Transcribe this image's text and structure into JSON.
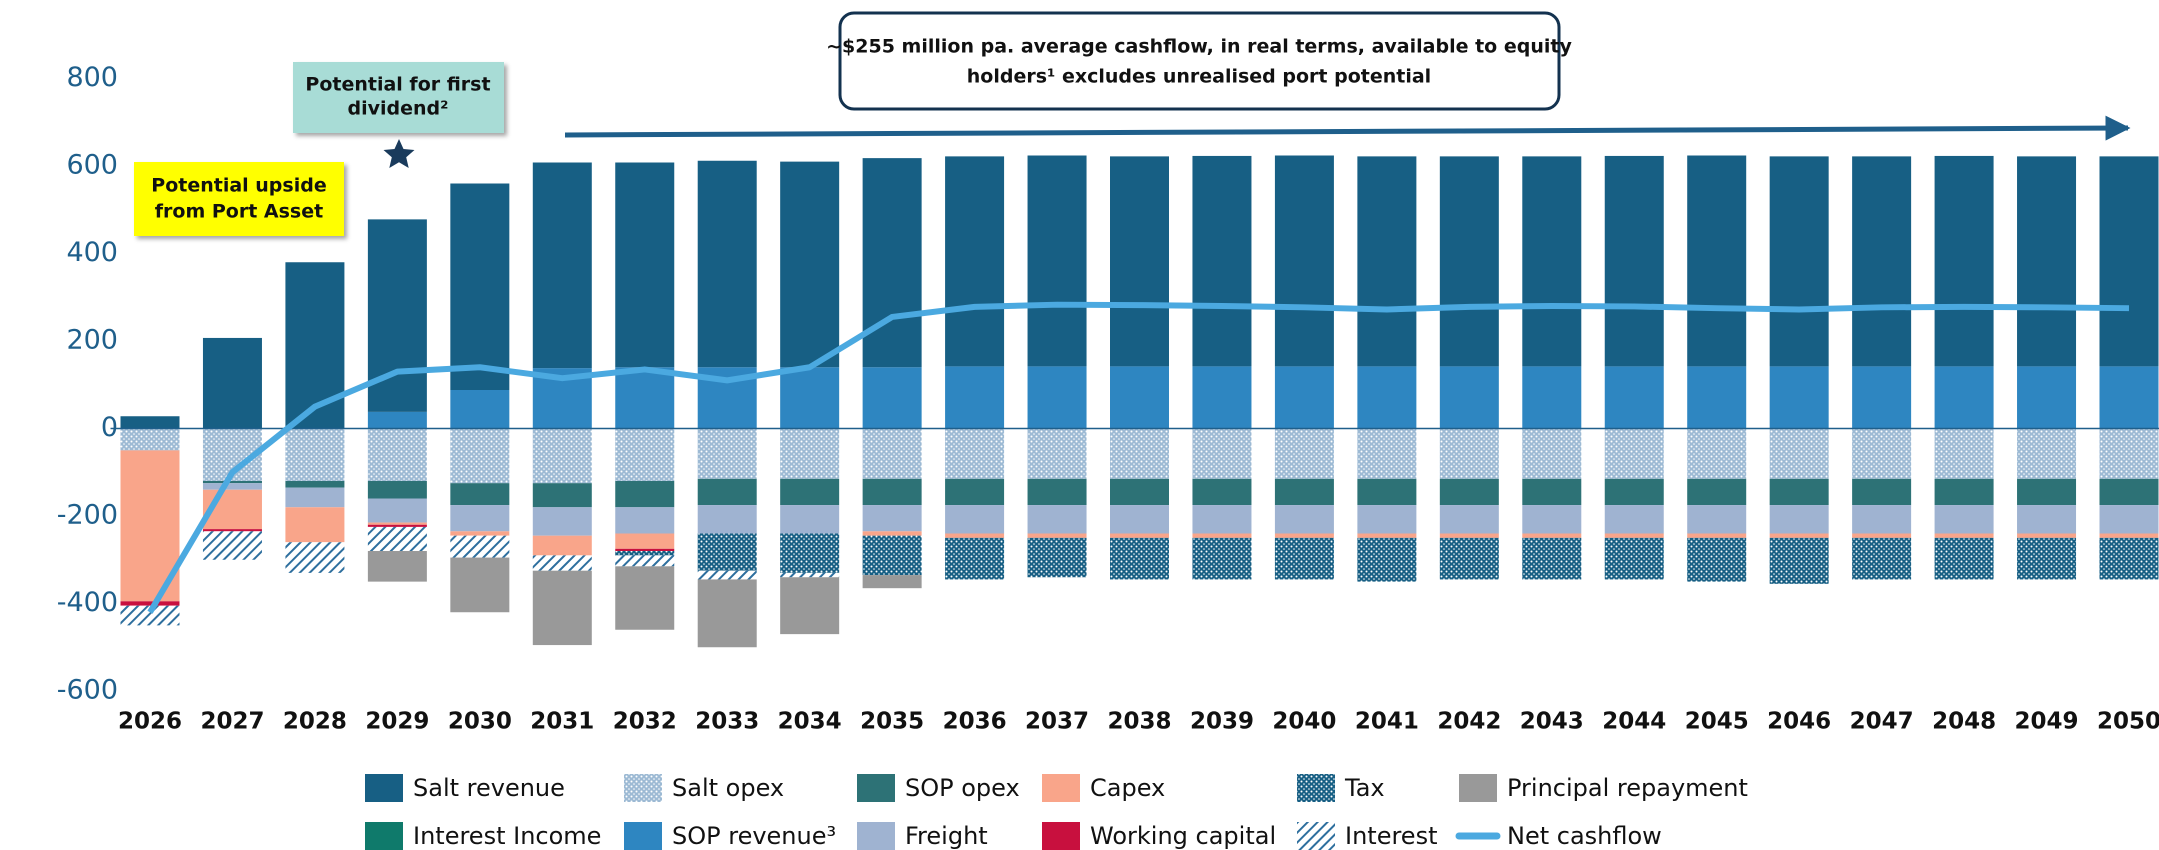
{
  "chart_data": {
    "type": "bar",
    "categories": [
      "2026",
      "2027",
      "2028",
      "2029",
      "2030",
      "2031",
      "2032",
      "2033",
      "2034",
      "2035",
      "2036",
      "2037",
      "2038",
      "2039",
      "2040",
      "2041",
      "2042",
      "2043",
      "2044",
      "2045",
      "2046",
      "2047",
      "2048",
      "2049",
      "2050"
    ],
    "ylim": [
      -600,
      800
    ],
    "yticks": [
      -600,
      -400,
      -200,
      0,
      200,
      400,
      600,
      800
    ],
    "series": [
      {
        "name": "SOP revenue³",
        "color": "#2e86c1",
        "values": [
          0,
          0,
          0,
          38,
          88,
          138,
          140,
          140,
          140,
          140,
          142,
          142,
          142,
          142,
          142,
          142,
          142,
          142,
          142,
          142,
          142,
          142,
          142,
          142,
          142
        ]
      },
      {
        "name": "Interest Income",
        "color": "#0f7a6b",
        "values": [
          0,
          0,
          0,
          0,
          0,
          0,
          0,
          0,
          0,
          0,
          0,
          0,
          0,
          0,
          0,
          0,
          0,
          0,
          0,
          0,
          0,
          0,
          0,
          0,
          0
        ]
      },
      {
        "name": "Salt revenue",
        "color": "#175f84",
        "values": [
          28,
          207,
          380,
          440,
          472,
          470,
          468,
          472,
          470,
          478,
          480,
          482,
          480,
          481,
          482,
          480,
          480,
          480,
          481,
          482,
          480,
          480,
          481,
          480,
          480
        ]
      },
      {
        "name": "Salt opex",
        "color": "#9dbad4",
        "pattern": "dots",
        "values": [
          -50,
          -120,
          -120,
          -120,
          -125,
          -125,
          -120,
          -115,
          -115,
          -115,
          -115,
          -115,
          -115,
          -115,
          -115,
          -115,
          -115,
          -115,
          -115,
          -115,
          -115,
          -115,
          -115,
          -115,
          -115
        ]
      },
      {
        "name": "SOP opex",
        "color": "#2d7276",
        "values": [
          0,
          -5,
          -15,
          -40,
          -50,
          -55,
          -60,
          -60,
          -60,
          -60,
          -60,
          -60,
          -60,
          -60,
          -60,
          -60,
          -60,
          -60,
          -60,
          -60,
          -60,
          -60,
          -60,
          -60,
          -60
        ]
      },
      {
        "name": "Freight",
        "color": "#9fb3d1",
        "values": [
          0,
          -15,
          -45,
          -55,
          -60,
          -65,
          -60,
          -65,
          -65,
          -60,
          -65,
          -65,
          -65,
          -65,
          -65,
          -65,
          -65,
          -65,
          -65,
          -65,
          -65,
          -65,
          -65,
          -65,
          -65
        ]
      },
      {
        "name": "Capex",
        "color": "#f9a58a",
        "values": [
          -345,
          -90,
          -80,
          -5,
          -10,
          -45,
          -35,
          0,
          0,
          -10,
          -10,
          -10,
          -10,
          -10,
          -10,
          -10,
          -10,
          -10,
          -10,
          -10,
          -10,
          -10,
          -10,
          -10,
          -10
        ]
      },
      {
        "name": "Working capital",
        "color": "#c8103e",
        "values": [
          -10,
          -5,
          0,
          -5,
          0,
          0,
          -5,
          0,
          0,
          0,
          0,
          0,
          0,
          0,
          0,
          0,
          0,
          0,
          0,
          0,
          0,
          0,
          0,
          0,
          0
        ]
      },
      {
        "name": "Tax",
        "color": "#175f84",
        "pattern": "dots",
        "values": [
          0,
          0,
          0,
          0,
          0,
          0,
          -10,
          -85,
          -90,
          -90,
          -95,
          -90,
          -95,
          -95,
          -95,
          -100,
          -95,
          -95,
          -95,
          -100,
          -105,
          -95,
          -95,
          -95,
          -95
        ]
      },
      {
        "name": "Interest",
        "color": "#2e6f9e",
        "pattern": "hatch",
        "values": [
          -45,
          -65,
          -70,
          -55,
          -50,
          -35,
          -25,
          -20,
          -10,
          0,
          0,
          0,
          0,
          0,
          0,
          0,
          0,
          0,
          0,
          0,
          0,
          0,
          0,
          0,
          0
        ]
      },
      {
        "name": "Principal repayment",
        "color": "#999999",
        "values": [
          0,
          0,
          0,
          -70,
          -125,
          -170,
          -145,
          -155,
          -130,
          -30,
          0,
          0,
          0,
          0,
          0,
          0,
          0,
          0,
          0,
          0,
          0,
          0,
          0,
          0,
          0
        ]
      },
      {
        "name": "Net cashflow",
        "type": "line",
        "color": "#4ba9e0",
        "values": [
          -420,
          -100,
          50,
          130,
          140,
          115,
          135,
          110,
          140,
          255,
          278,
          283,
          282,
          280,
          277,
          272,
          278,
          280,
          279,
          275,
          272,
          277,
          278,
          277,
          275
        ]
      }
    ],
    "annotations": [
      {
        "lines": [
          "Potential upside",
          "from Port Asset"
        ]
      },
      {
        "lines": [
          "Potential for first",
          "dividend²"
        ]
      },
      {
        "lines": [
          "~$255 million pa. average cashflow, in real terms, available to equity",
          "holders¹ excludes unrealised port potential"
        ]
      }
    ]
  }
}
